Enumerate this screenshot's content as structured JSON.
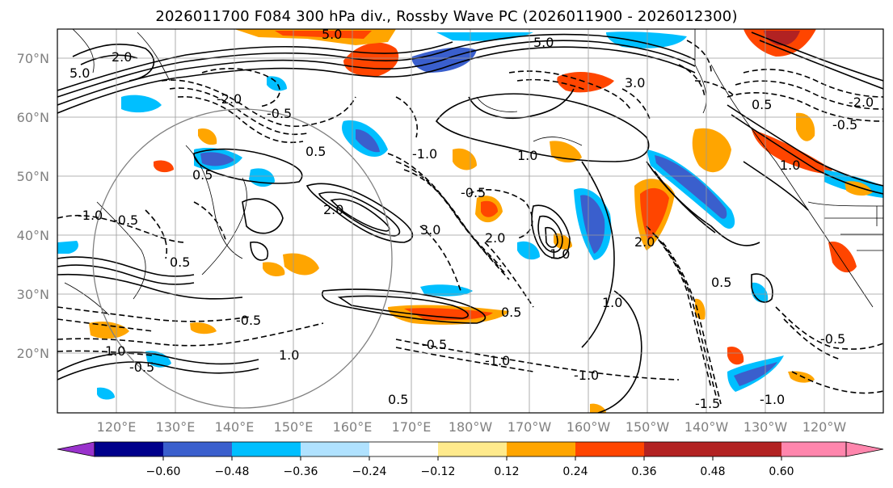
{
  "title": "2026011700 F084 300 hPa div., Rossby Wave PC (2026011900 - 2026012300)",
  "lat_labels": [
    "70°N",
    "60°N",
    "50°N",
    "40°N",
    "30°N",
    "20°N"
  ],
  "lon_labels": [
    "120°E",
    "130°E",
    "140°E",
    "150°E",
    "160°E",
    "170°E",
    "180°W",
    "170°W",
    "160°W",
    "150°W",
    "140°W",
    "130°W",
    "120°W"
  ],
  "contour_labels_solid": [
    "5.0",
    "2.0",
    "3.0",
    "0.5",
    "1.0",
    "2.0",
    "1.0",
    "0.5",
    "1.0",
    "0.5",
    "2.0",
    "0.5",
    "1.0",
    "1.0",
    "1.0",
    "0.5",
    "0.5",
    "1.0",
    "2.0",
    "0.5",
    "0.5",
    "1.0"
  ],
  "contour_labels_dashed": [
    "-0.5",
    "-1.0",
    "-2.0",
    "-1.0",
    "-0.5",
    "-1.0",
    "-0.5",
    "-1.0",
    "-0.5",
    "-1.5",
    "-1.0",
    "-0.5",
    "-0.5",
    "-0.5",
    "-1.0",
    "-0.5"
  ],
  "colorbar": {
    "colors": [
      "#9932cc",
      "#00008b",
      "#3a5fcd",
      "#00bfff",
      "#b0e2ff",
      "#ffffff",
      "#ffea8c",
      "#ffa500",
      "#ff4500",
      "#b22222",
      "#ff86ad"
    ],
    "tick_labels": [
      "−0.60",
      "−0.48",
      "−0.36",
      "−0.24",
      "−0.12",
      "0.12",
      "0.24",
      "0.36",
      "0.48",
      "0.60"
    ]
  }
}
